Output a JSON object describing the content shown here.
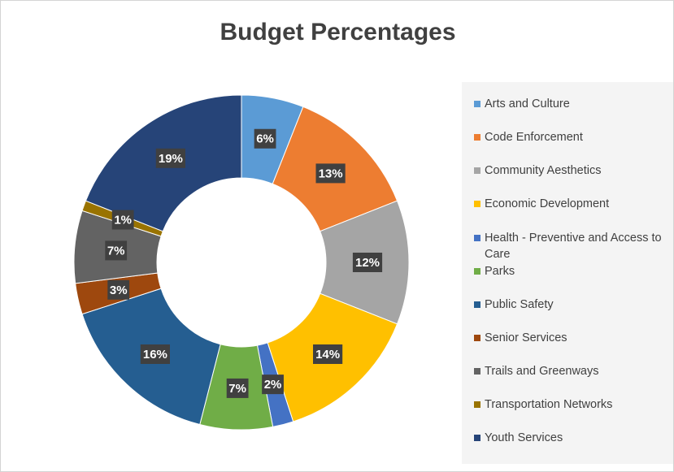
{
  "chart_data": {
    "type": "pie",
    "subtype": "donut",
    "title": "Budget Percentages",
    "categories": [
      "Arts and Culture",
      "Code Enforcement",
      "Community Aesthetics",
      "Economic Development",
      "Health - Preventive and Access to\nCare",
      "Parks",
      "Public Safety",
      "Senior Services",
      "Trails and Greenways",
      "Transportation Networks",
      "Youth Services"
    ],
    "values": [
      6,
      13,
      12,
      14,
      2,
      7,
      16,
      3,
      7,
      1,
      19
    ],
    "data_labels": [
      "6%",
      "13%",
      "12%",
      "14%",
      "2%",
      "7%",
      "16%",
      "3%",
      "7%",
      "1%",
      "19%"
    ],
    "colors": [
      "#5b9bd5",
      "#ed7d31",
      "#a5a5a5",
      "#ffc000",
      "#4472c4",
      "#70ad47",
      "#255e91",
      "#9e480e",
      "#636363",
      "#997300",
      "#264478"
    ],
    "legend_position": "right",
    "label_background": "#404040"
  }
}
